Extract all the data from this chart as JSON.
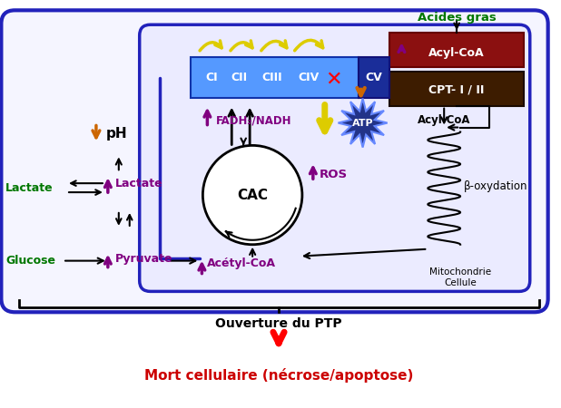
{
  "bg": "#ffffff",
  "cell_ec": "#2222bb",
  "cell_fc": "#f5f5ff",
  "mito_ec": "#2222bb",
  "mito_fc": "#ebebff",
  "acyl_red": "#8B1010",
  "cpt_brown": "#3d1c00",
  "bar_blue": "#5599ff",
  "bar_dark": "#1a2d99",
  "green": "#007700",
  "purple": "#800080",
  "orange": "#cc6600",
  "yellow_arrow": "#ddcc00",
  "atp_dark": "#223388",
  "atp_edge": "#6688ff",
  "black": "#000000",
  "red": "#cc0000",
  "white": "#ffffff",
  "labels": {
    "acides_gras": "Acides gras",
    "acyl_coa_top": "Acyl-CoA",
    "cpt": "CPT- I / II",
    "CI": "CI",
    "CII": "CII",
    "CIII": "CIII",
    "CIV": "CIV",
    "CV": "CV",
    "cac": "CAC",
    "fadh": "FADH₂/NADH",
    "ros": "ROS",
    "acyl_coa_mid": "Acyl-CoA",
    "beta_ox": "β-oxydation",
    "lactate_ext": "Lactate",
    "glucose_ext": "Glucose",
    "pH": "pH",
    "lactate_int": "Lactate",
    "pyruvate": "Pyruvate",
    "acetyl_coa": "Acétyl-CoA",
    "mito": "Mitochondrie",
    "cellule": "Cellule",
    "ptp": "Ouverture du PTP",
    "mort": "Mort cellulaire (nécrose/apoptose)",
    "atp": "ATP"
  }
}
